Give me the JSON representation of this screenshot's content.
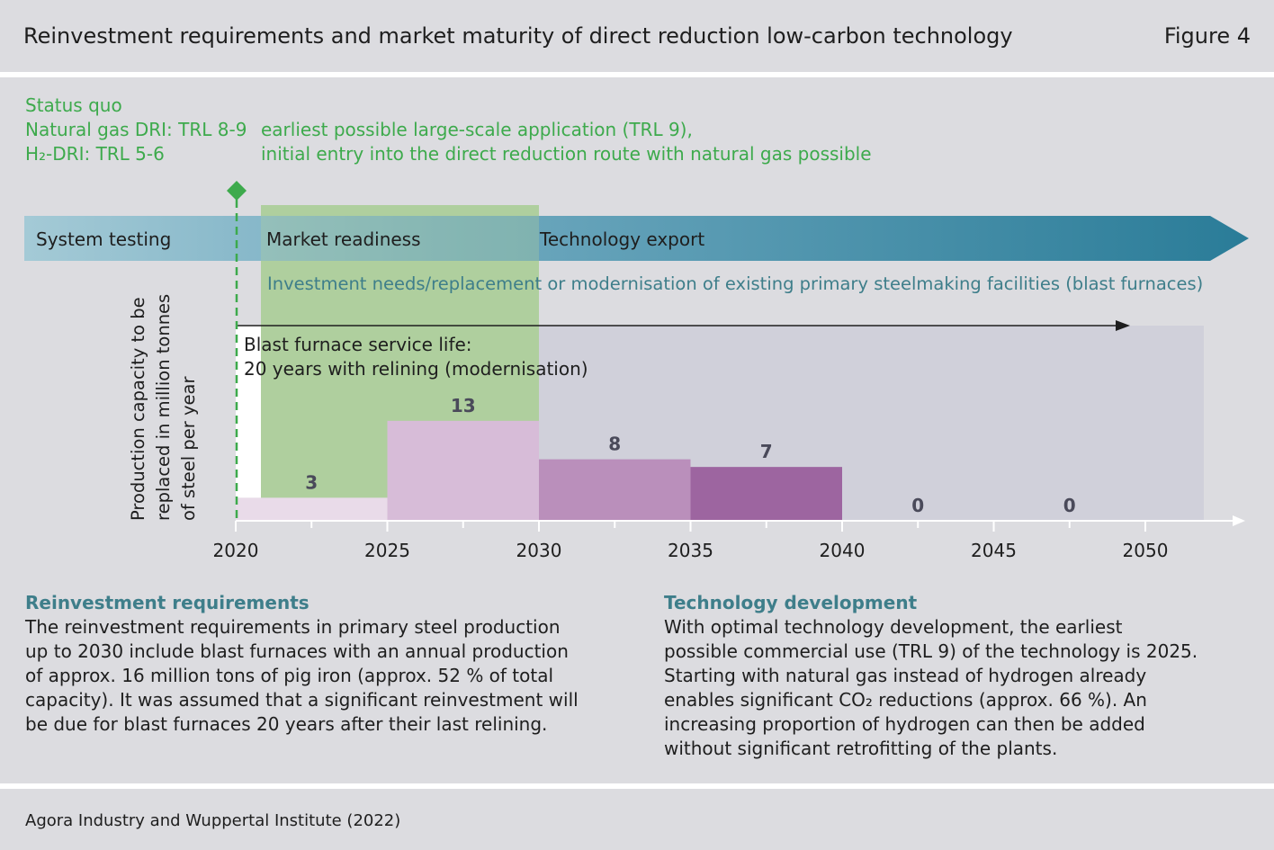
{
  "header": {
    "title": "Reinvestment requirements and market maturity of direct reduction low-carbon technology",
    "figure_label": "Figure 4"
  },
  "status": {
    "heading": "Status quo",
    "ng_dri": "Natural gas DRI: TRL 8-9",
    "h2_dri": "H₂-DRI: TRL 5-6",
    "note_line1": "earliest possible large-scale application (TRL 9),",
    "note_line2": "initial entry into the direct reduction route with natural gas possible"
  },
  "phases": {
    "system_testing": "System testing",
    "market_readiness": "Market readiness",
    "technology_export": "Technology export"
  },
  "investment_note": "Investment needs/replacement or modernisation of existing primary steelmaking facilities (blast furnaces)",
  "service_life": {
    "line1": "Blast furnace service life:",
    "line2": "20 years with relining (modernisation)"
  },
  "colors": {
    "green_text": "#3daa4c",
    "market_band": "#afcf9e",
    "teal_heading": "#3e7e8a",
    "background": "#dcdce0"
  },
  "chart_data": {
    "type": "bar",
    "ylabel_lines": [
      "Production capacity to be",
      "replaced in million tonnes",
      "of steel per year"
    ],
    "xticks": [
      "2020",
      "2025",
      "2030",
      "2035",
      "2040",
      "2045",
      "2050"
    ],
    "bins": [
      {
        "start": 2020,
        "end": 2025,
        "value": 3,
        "label": "3",
        "color": "#e9dbe9"
      },
      {
        "start": 2025,
        "end": 2030,
        "value": 13,
        "label": "13",
        "color": "#d7bcd8"
      },
      {
        "start": 2030,
        "end": 2035,
        "value": 8,
        "label": "8",
        "color": "#ba8fbb"
      },
      {
        "start": 2035,
        "end": 2040,
        "value": 7,
        "label": "7",
        "color": "#9d65a0"
      },
      {
        "start": 2040,
        "end": 2045,
        "value": 0,
        "label": "0",
        "color": "#d0d0da"
      },
      {
        "start": 2045,
        "end": 2050,
        "value": 0,
        "label": "0",
        "color": "#d0d0da"
      }
    ],
    "xlim": [
      2020,
      2052
    ],
    "grid": false
  },
  "reinvestment": {
    "heading": "Reinvestment requirements",
    "lines": [
      "The reinvestment requirements in primary steel production",
      "up to 2030 include blast furnaces with an annual production",
      "of approx. 16 million tons of pig iron (approx. 52 % of total",
      "capacity). It was assumed that a significant reinvestment will",
      "be due for blast furnaces 20 years after their last relining."
    ]
  },
  "technology": {
    "heading": "Technology development",
    "lines": [
      "With optimal technology development, the earliest",
      "possible commercial use (TRL 9) of the technology is 2025.",
      "Starting with natural gas instead of hydrogen already",
      "enables significant CO₂ reductions (approx. 66 %). An",
      "increasing proportion of hydrogen can then be added",
      "without significant retrofitting of the plants."
    ]
  },
  "source": "Agora Industry and Wuppertal Institute (2022)"
}
